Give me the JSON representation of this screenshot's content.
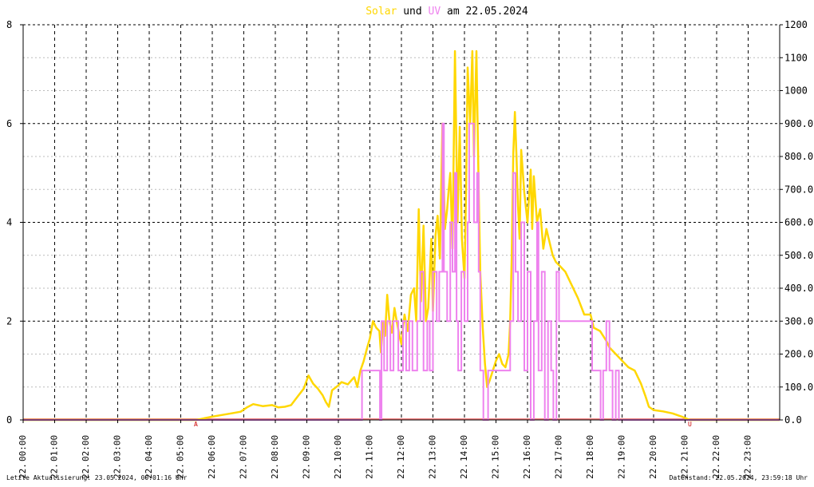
{
  "chart_data": {
    "type": "line",
    "title": {
      "part1": "Solar",
      "part2": " und ",
      "part3": "UV",
      "part4": " am 22.05.2024"
    },
    "left_axis": {
      "ylim": [
        0,
        8
      ],
      "ticks": [
        "0",
        "2",
        "4",
        "6",
        "8"
      ]
    },
    "right_axis": {
      "ylim": [
        0,
        1200
      ],
      "ticks": [
        "0.0",
        "100.0",
        "200.0",
        "300.0",
        "400.0",
        "500.0",
        "600.0",
        "700.0",
        "800.0",
        "900.0",
        "1000",
        "1100",
        "1200"
      ]
    },
    "x_axis": {
      "xlim": [
        0,
        24
      ],
      "date_prefix": "22.",
      "ticks": [
        "00:00",
        "01:00",
        "02:00",
        "03:00",
        "04:00",
        "05:00",
        "06:00",
        "07:00",
        "08:00",
        "09:00",
        "10:00",
        "11:00",
        "12:00",
        "13:00",
        "14:00",
        "15:00",
        "16:00",
        "17:00",
        "18:00",
        "19:00",
        "20:00",
        "21:00",
        "22:00",
        "23:00"
      ]
    },
    "grid": true,
    "markers": [
      {
        "label": "A",
        "x": 5.48
      },
      {
        "label": "U",
        "x": 21.15
      }
    ],
    "colors": {
      "solar": "#ffd700",
      "uv": "#ee82ee",
      "baseline": "#f08080",
      "marker": "#cc0000",
      "title_text": "#000000"
    },
    "series": [
      {
        "name": "Solar",
        "axis": "right",
        "points": [
          [
            0,
            0
          ],
          [
            5.5,
            0
          ],
          [
            5.75,
            5
          ],
          [
            6,
            10
          ],
          [
            6.3,
            15
          ],
          [
            6.6,
            20
          ],
          [
            6.9,
            25
          ],
          [
            7.1,
            38
          ],
          [
            7.3,
            48
          ],
          [
            7.6,
            42
          ],
          [
            7.9,
            45
          ],
          [
            8.1,
            38
          ],
          [
            8.3,
            40
          ],
          [
            8.5,
            45
          ],
          [
            8.7,
            70
          ],
          [
            8.9,
            95
          ],
          [
            9.05,
            135
          ],
          [
            9.2,
            110
          ],
          [
            9.35,
            95
          ],
          [
            9.5,
            75
          ],
          [
            9.6,
            55
          ],
          [
            9.7,
            40
          ],
          [
            9.8,
            90
          ],
          [
            10,
            105
          ],
          [
            10.1,
            115
          ],
          [
            10.3,
            108
          ],
          [
            10.5,
            130
          ],
          [
            10.6,
            100
          ],
          [
            10.7,
            150
          ],
          [
            10.8,
            178
          ],
          [
            10.9,
            215
          ],
          [
            11,
            248
          ],
          [
            11.1,
            300
          ],
          [
            11.2,
            280
          ],
          [
            11.3,
            270
          ],
          [
            11.35,
            205
          ],
          [
            11.42,
            295
          ],
          [
            11.48,
            255
          ],
          [
            11.55,
            380
          ],
          [
            11.62,
            300
          ],
          [
            11.7,
            265
          ],
          [
            11.78,
            340
          ],
          [
            11.85,
            300
          ],
          [
            11.95,
            250
          ],
          [
            12,
            230
          ],
          [
            12.1,
            320
          ],
          [
            12.2,
            270
          ],
          [
            12.3,
            380
          ],
          [
            12.4,
            400
          ],
          [
            12.47,
            300
          ],
          [
            12.55,
            640
          ],
          [
            12.62,
            360
          ],
          [
            12.7,
            590
          ],
          [
            12.78,
            300
          ],
          [
            12.85,
            340
          ],
          [
            12.95,
            550
          ],
          [
            13,
            330
          ],
          [
            13.08,
            560
          ],
          [
            13.15,
            620
          ],
          [
            13.22,
            490
          ],
          [
            13.3,
            900
          ],
          [
            13.38,
            580
          ],
          [
            13.45,
            640
          ],
          [
            13.5,
            700
          ],
          [
            13.55,
            750
          ],
          [
            13.62,
            520
          ],
          [
            13.7,
            1120
          ],
          [
            13.78,
            600
          ],
          [
            13.85,
            890
          ],
          [
            13.92,
            550
          ],
          [
            14,
            430
          ],
          [
            14.05,
            690
          ],
          [
            14.1,
            1070
          ],
          [
            14.18,
            900
          ],
          [
            14.25,
            1120
          ],
          [
            14.3,
            800
          ],
          [
            14.38,
            1120
          ],
          [
            14.45,
            700
          ],
          [
            14.5,
            450
          ],
          [
            14.58,
            280
          ],
          [
            14.65,
            170
          ],
          [
            14.72,
            100
          ],
          [
            14.8,
            120
          ],
          [
            14.9,
            150
          ],
          [
            15,
            180
          ],
          [
            15.1,
            200
          ],
          [
            15.2,
            170
          ],
          [
            15.3,
            160
          ],
          [
            15.4,
            200
          ],
          [
            15.45,
            300
          ],
          [
            15.5,
            500
          ],
          [
            15.55,
            810
          ],
          [
            15.6,
            935
          ],
          [
            15.65,
            800
          ],
          [
            15.7,
            650
          ],
          [
            15.75,
            550
          ],
          [
            15.8,
            820
          ],
          [
            15.9,
            690
          ],
          [
            16,
            600
          ],
          [
            16.1,
            760
          ],
          [
            16.15,
            580
          ],
          [
            16.2,
            740
          ],
          [
            16.3,
            600
          ],
          [
            16.4,
            640
          ],
          [
            16.5,
            520
          ],
          [
            16.6,
            580
          ],
          [
            16.7,
            540
          ],
          [
            16.8,
            500
          ],
          [
            16.9,
            480
          ],
          [
            17,
            470
          ],
          [
            17.2,
            450
          ],
          [
            17.4,
            410
          ],
          [
            17.6,
            370
          ],
          [
            17.8,
            320
          ],
          [
            18,
            320
          ],
          [
            18.1,
            280
          ],
          [
            18.3,
            270
          ],
          [
            18.5,
            240
          ],
          [
            18.6,
            220
          ],
          [
            18.8,
            200
          ],
          [
            19,
            180
          ],
          [
            19.2,
            160
          ],
          [
            19.4,
            150
          ],
          [
            19.6,
            110
          ],
          [
            19.75,
            70
          ],
          [
            19.85,
            40
          ],
          [
            20,
            30
          ],
          [
            20.3,
            26
          ],
          [
            20.6,
            20
          ],
          [
            20.9,
            10
          ],
          [
            21.15,
            0
          ],
          [
            24,
            0
          ]
        ]
      },
      {
        "name": "UV",
        "axis": "left",
        "points": [
          [
            0,
            0
          ],
          [
            10.7,
            0
          ],
          [
            10.75,
            1
          ],
          [
            11.25,
            1
          ],
          [
            11.32,
            0
          ],
          [
            11.37,
            2
          ],
          [
            11.45,
            1
          ],
          [
            11.55,
            2
          ],
          [
            11.65,
            1
          ],
          [
            11.75,
            2
          ],
          [
            11.9,
            1
          ],
          [
            12.05,
            2
          ],
          [
            12.15,
            1
          ],
          [
            12.25,
            2
          ],
          [
            12.35,
            1
          ],
          [
            12.5,
            2
          ],
          [
            12.6,
            3
          ],
          [
            12.7,
            1
          ],
          [
            12.82,
            2
          ],
          [
            12.9,
            1
          ],
          [
            13,
            3
          ],
          [
            13.12,
            2
          ],
          [
            13.2,
            3
          ],
          [
            13.3,
            6
          ],
          [
            13.35,
            3
          ],
          [
            13.45,
            2
          ],
          [
            13.55,
            4
          ],
          [
            13.62,
            3
          ],
          [
            13.7,
            5
          ],
          [
            13.75,
            2
          ],
          [
            13.8,
            1
          ],
          [
            13.9,
            3
          ],
          [
            14,
            2
          ],
          [
            14.1,
            4
          ],
          [
            14.15,
            6
          ],
          [
            14.3,
            4
          ],
          [
            14.4,
            5
          ],
          [
            14.45,
            3
          ],
          [
            14.5,
            1
          ],
          [
            14.6,
            0
          ],
          [
            14.7,
            0
          ],
          [
            14.75,
            1
          ],
          [
            15.3,
            1
          ],
          [
            15.45,
            2
          ],
          [
            15.55,
            5
          ],
          [
            15.62,
            3
          ],
          [
            15.7,
            2
          ],
          [
            15.8,
            4
          ],
          [
            15.9,
            1
          ],
          [
            16,
            3
          ],
          [
            16.1,
            0
          ],
          [
            16.2,
            2
          ],
          [
            16.3,
            4
          ],
          [
            16.35,
            1
          ],
          [
            16.45,
            3
          ],
          [
            16.55,
            0
          ],
          [
            16.65,
            2
          ],
          [
            16.75,
            1
          ],
          [
            16.82,
            0
          ],
          [
            16.92,
            3
          ],
          [
            17,
            2
          ],
          [
            17.2,
            2
          ],
          [
            17.4,
            2
          ],
          [
            17.55,
            2
          ],
          [
            17.8,
            2
          ],
          [
            18,
            2
          ],
          [
            18.05,
            1
          ],
          [
            18.3,
            1
          ],
          [
            18.32,
            0
          ],
          [
            18.4,
            1
          ],
          [
            18.5,
            2
          ],
          [
            18.6,
            1
          ],
          [
            18.7,
            0
          ],
          [
            18.8,
            1
          ],
          [
            18.9,
            0
          ],
          [
            19,
            0
          ],
          [
            24,
            0
          ]
        ]
      }
    ],
    "footer_left": "Letzte Aktualisierung: 23.05.2024, 00:01:16 Uhr",
    "footer_right": "Datenstand: 22.05.2024, 23:59:18 Uhr"
  }
}
